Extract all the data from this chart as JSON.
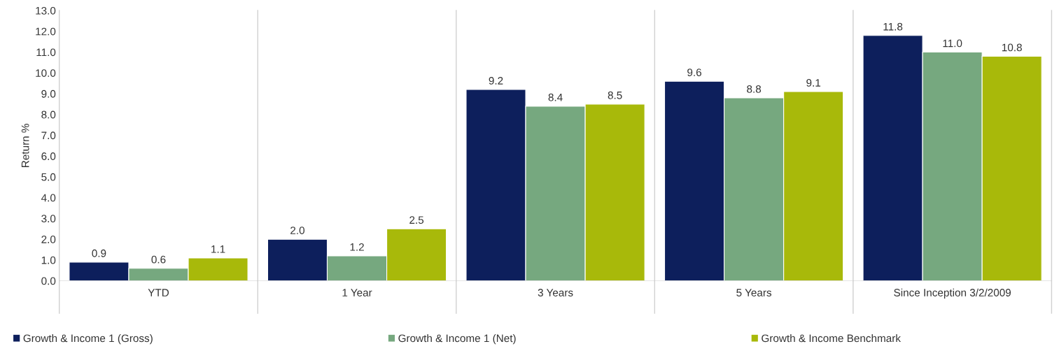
{
  "chart_data": {
    "type": "bar",
    "categories": [
      "YTD",
      "1 Year",
      "3 Years",
      "5 Years",
      "Since Inception 3/2/2009"
    ],
    "ylabel": "Return %",
    "series": [
      {
        "name": "Growth & Income 1 (Gross)",
        "color": "#0d1f5c",
        "values": [
          0.9,
          2.0,
          9.2,
          9.6,
          11.8
        ],
        "value_labels": [
          "0.9",
          "2.0",
          "9.2",
          "9.6",
          "11.8"
        ]
      },
      {
        "name": "Growth & Income 1 (Net)",
        "color": "#76a87f",
        "values": [
          0.6,
          1.2,
          8.4,
          8.8,
          11.0
        ],
        "value_labels": [
          "0.6",
          "1.2",
          "8.4",
          "8.8",
          "11.0"
        ]
      },
      {
        "name": "Growth & Income Benchmark",
        "color": "#a8b90a",
        "values": [
          1.1,
          2.5,
          8.5,
          9.1,
          10.8
        ],
        "value_labels": [
          "1.1",
          "2.5",
          "8.5",
          "9.1",
          "10.8"
        ]
      }
    ],
    "ylim": [
      0,
      13
    ],
    "yticks": [
      {
        "value": 0,
        "label": "0.0"
      },
      {
        "value": 1,
        "label": "1.0"
      },
      {
        "value": 2,
        "label": "2.0"
      },
      {
        "value": 3,
        "label": "3.0"
      },
      {
        "value": 4,
        "label": "4.0"
      },
      {
        "value": 5,
        "label": "5.0"
      },
      {
        "value": 6,
        "label": "6.0"
      },
      {
        "value": 7,
        "label": "7.0"
      },
      {
        "value": 8,
        "label": "8.0"
      },
      {
        "value": 9,
        "label": "9.0"
      },
      {
        "value": 10,
        "label": "10.0"
      },
      {
        "value": 11,
        "label": "11.0"
      },
      {
        "value": 12,
        "label": "12.0"
      },
      {
        "value": 13,
        "label": "13.0"
      }
    ],
    "grid": "x",
    "legend": "bottom"
  }
}
